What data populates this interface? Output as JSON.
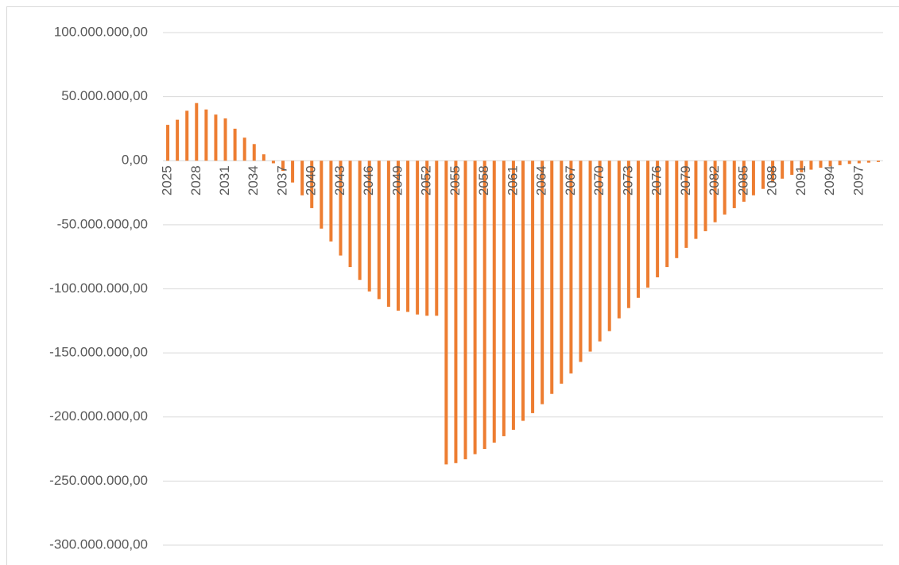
{
  "chart_data": {
    "type": "bar",
    "color": "#ed7d31",
    "grid": true,
    "categories": [
      "2025",
      null,
      null,
      "2028",
      null,
      null,
      "2031",
      null,
      null,
      "2034",
      null,
      null,
      "2037",
      null,
      null,
      "2040",
      null,
      null,
      "2043",
      null,
      null,
      "2046",
      null,
      null,
      "2049",
      null,
      null,
      "2052",
      null,
      null,
      "2055",
      null,
      null,
      "2058",
      null,
      null,
      "2061",
      null,
      null,
      "2064",
      null,
      null,
      "2067",
      null,
      null,
      "2070",
      null,
      null,
      "2073",
      null,
      null,
      "2076",
      null,
      null,
      "2079",
      null,
      null,
      "2082",
      null,
      null,
      "2085",
      null,
      null,
      "2088",
      null,
      null,
      "2091",
      null,
      null,
      "2094",
      null,
      null,
      "2097",
      null,
      null
    ],
    "values": [
      28000000,
      32000000,
      39000000,
      45000000,
      40000000,
      36000000,
      33000000,
      25000000,
      18000000,
      13000000,
      5000000,
      -2000000,
      -8000000,
      -17000000,
      -27000000,
      -37000000,
      -53000000,
      -63000000,
      -74000000,
      -83000000,
      -93000000,
      -102000000,
      -108000000,
      -114000000,
      -117000000,
      -118000000,
      -120000000,
      -121000000,
      -121000000,
      -237000000,
      -236000000,
      -233000000,
      -229000000,
      -225000000,
      -220000000,
      -215000000,
      -210000000,
      -203000000,
      -197000000,
      -190000000,
      -182000000,
      -174000000,
      -166000000,
      -157000000,
      -149000000,
      -141000000,
      -133000000,
      -123000000,
      -115000000,
      -107000000,
      -99000000,
      -91000000,
      -83000000,
      -76000000,
      -68000000,
      -61000000,
      -55000000,
      -48000000,
      -42000000,
      -37000000,
      -32000000,
      -27000000,
      -22000000,
      -17000000,
      -14000000,
      -11000000,
      -9000000,
      -7000000,
      -5500000,
      -4500000,
      -3500000,
      -2500000,
      -2000000,
      -1500000,
      -1000000
    ],
    "ylim": [
      -300000000,
      100000000
    ],
    "yticks": [
      {
        "value": -300000000,
        "label": "-300.000.000,00"
      },
      {
        "value": -250000000,
        "label": "-250.000.000,00"
      },
      {
        "value": -200000000,
        "label": "-200.000.000,00"
      },
      {
        "value": -150000000,
        "label": "-150.000.000,00"
      },
      {
        "value": -100000000,
        "label": "-100.000.000,00"
      },
      {
        "value": -50000000,
        "label": "-50.000.000,00"
      },
      {
        "value": 0,
        "label": "0,00"
      },
      {
        "value": 50000000,
        "label": "50.000.000,00"
      },
      {
        "value": 100000000,
        "label": "100.000.000,00"
      }
    ]
  }
}
